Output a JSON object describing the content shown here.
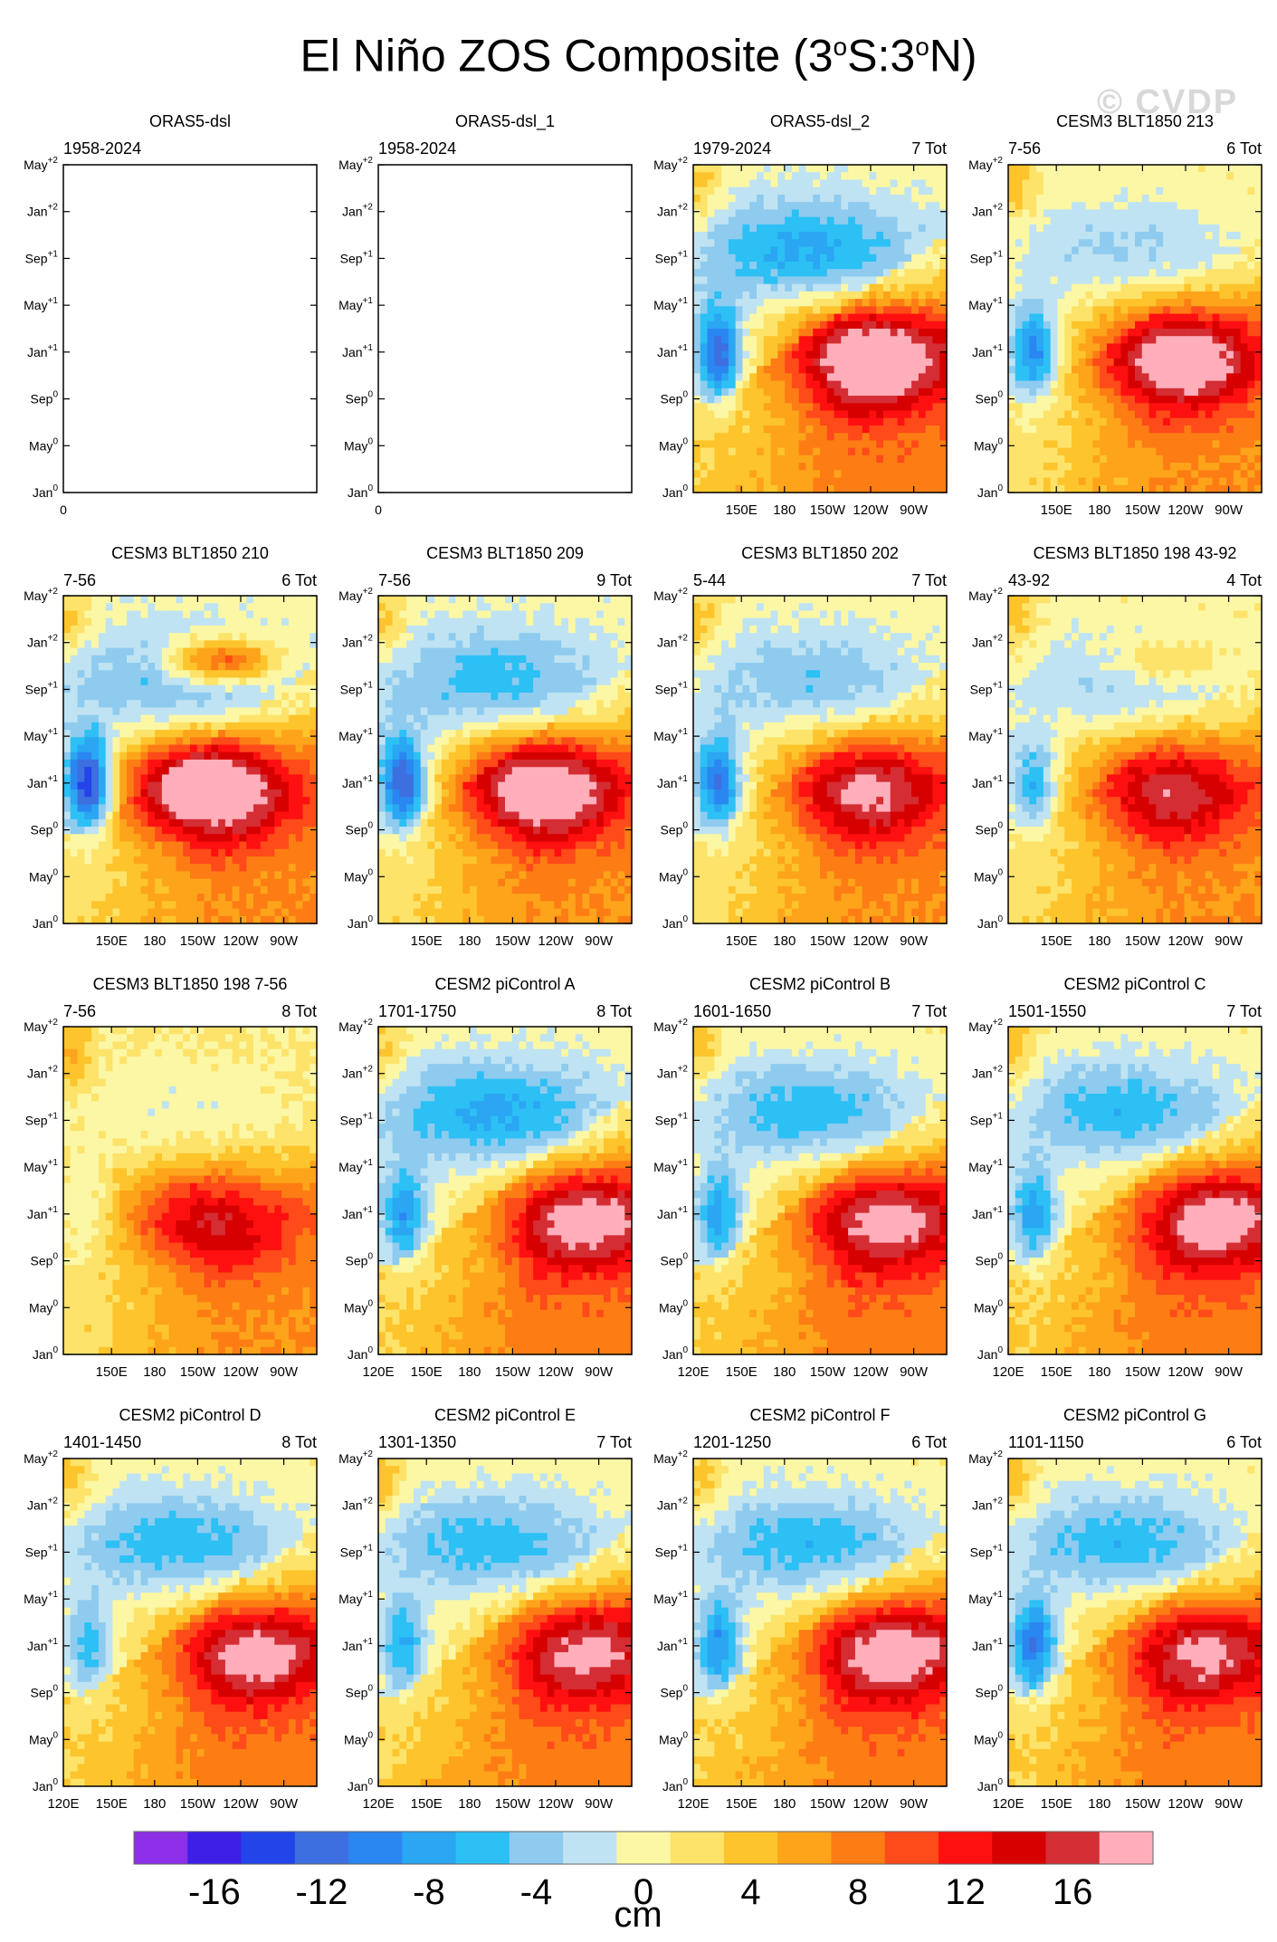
{
  "title": {
    "main": "El Niño ZOS Composite (3",
    "deg1": "o",
    "mid": "S:3",
    "deg2": "o",
    "end": "N)"
  },
  "watermark": "© CVDP",
  "chart_data": {
    "type": "heatmap",
    "colorbar": {
      "label": "cm",
      "levels": [
        -18,
        -16,
        -14,
        -12,
        -10,
        -8,
        -6,
        -4,
        -2,
        0,
        2,
        4,
        6,
        8,
        10,
        12,
        14,
        16,
        18
      ],
      "tick_labels": [
        "-16",
        "-12",
        "-8",
        "-4",
        "0",
        "4",
        "8",
        "12",
        "16"
      ],
      "tick_values": [
        -16,
        -12,
        -8,
        -4,
        0,
        4,
        8,
        12,
        16
      ],
      "colors": [
        "#8c2fe6",
        "#3d1fe6",
        "#2244e8",
        "#3d6fe0",
        "#2a86f0",
        "#2aa6f2",
        "#2cc0f5",
        "#8ecbef",
        "#bfe3f2",
        "#fbf7a5",
        "#fde36a",
        "#fdc42c",
        "#fda41a",
        "#fd7d14",
        "#ff4a1a",
        "#ff1010",
        "#d70000",
        "#d42d33",
        "#ffaeba"
      ]
    },
    "y_ticks": [
      {
        "m": "May",
        "s": "+2"
      },
      {
        "m": "Jan",
        "s": "+2"
      },
      {
        "m": "Sep",
        "s": "+1"
      },
      {
        "m": "May",
        "s": "+1"
      },
      {
        "m": "Jan",
        "s": "+1"
      },
      {
        "m": "Sep",
        "s": "0"
      },
      {
        "m": "May",
        "s": "0"
      },
      {
        "m": "Jan",
        "s": "0"
      }
    ],
    "x_ticks_full": [
      "120E",
      "150E",
      "180",
      "150W",
      "120W",
      "90W"
    ],
    "x_ticks_partial": [
      "150E",
      "180",
      "150W",
      "120W",
      "90W"
    ],
    "panels": [
      {
        "name": "ORAS5-dsl",
        "left": "1958-2024",
        "right": "",
        "empty": true,
        "zero_label": "0",
        "peak": 0,
        "west": 0,
        "neg": 0,
        "lobe2": 0,
        "bg": 0
      },
      {
        "name": "ORAS5-dsl_1",
        "left": "1958-2024",
        "right": "",
        "empty": true,
        "zero_label": "0",
        "peak": 0,
        "west": 0,
        "neg": 0,
        "lobe2": 0,
        "bg": 0
      },
      {
        "name": "ORAS5-dsl_2",
        "left": "1979-2024",
        "right": "7 Tot",
        "empty": false,
        "xt": "partial",
        "peak": 17,
        "west": -13,
        "neg": -8,
        "lobe2": 0,
        "bg": 2,
        "c": 0.68
      },
      {
        "name": "CESM3 BLT1850 213",
        "left": "7-56",
        "right": "6 Tot",
        "empty": false,
        "xt": "partial",
        "peak": 17,
        "west": -11,
        "neg": -4,
        "lobe2": 0,
        "bg": 1,
        "c": 0.65
      },
      {
        "name": "CESM3 BLT1850 210",
        "left": "7-56",
        "right": "6 Tot",
        "empty": false,
        "xt": "partial",
        "peak": 20,
        "west": -17,
        "neg": -6,
        "lobe2": 13,
        "bg": 1,
        "c": 0.55
      },
      {
        "name": "CESM3 BLT1850 209",
        "left": "7-56",
        "right": "9 Tot",
        "empty": false,
        "xt": "partial",
        "peak": 18,
        "west": -14,
        "neg": -6,
        "lobe2": 0,
        "bg": 1,
        "c": 0.62
      },
      {
        "name": "CESM3 BLT1850 202",
        "left": "5-44",
        "right": "7 Tot",
        "empty": false,
        "xt": "partial",
        "peak": 14,
        "west": -12,
        "neg": -5,
        "lobe2": 0,
        "bg": 1,
        "c": 0.65
      },
      {
        "name": "CESM3 BLT1850 198 43-92",
        "left": "43-92",
        "right": "4 Tot",
        "empty": false,
        "xt": "partial",
        "peak": 13,
        "west": -8,
        "neg": -4,
        "lobe2": 5,
        "bg": 1,
        "c": 0.6
      },
      {
        "name": "CESM3 BLT1850 198 7-56",
        "left": "7-56",
        "right": "8 Tot",
        "empty": false,
        "xt": "partial",
        "peak": 12,
        "west": -3,
        "neg": -2,
        "lobe2": 0,
        "bg": 1,
        "c": 0.55
      },
      {
        "name": "CESM2 piControl A",
        "left": "1701-1750",
        "right": "8 Tot",
        "empty": false,
        "xt": "full",
        "peak": 13,
        "west": -9,
        "neg": -8,
        "lobe2": 0,
        "bg": 2,
        "c": 0.78
      },
      {
        "name": "CESM2 piControl B",
        "left": "1601-1650",
        "right": "7 Tot",
        "empty": false,
        "xt": "full",
        "peak": 13,
        "west": -9,
        "neg": -7,
        "lobe2": 0,
        "bg": 2,
        "c": 0.72
      },
      {
        "name": "CESM2 piControl C",
        "left": "1501-1550",
        "right": "7 Tot",
        "empty": false,
        "xt": "full",
        "peak": 13,
        "west": -9,
        "neg": -7,
        "lobe2": 0,
        "bg": 2,
        "c": 0.78
      },
      {
        "name": "CESM2 piControl D",
        "left": "1401-1450",
        "right": "8 Tot",
        "empty": false,
        "xt": "full",
        "peak": 13,
        "west": -7,
        "neg": -7,
        "lobe2": 0,
        "bg": 2,
        "c": 0.72
      },
      {
        "name": "CESM2 piControl E",
        "left": "1301-1350",
        "right": "7 Tot",
        "empty": false,
        "xt": "full",
        "peak": 12,
        "west": -8,
        "neg": -7,
        "lobe2": 0,
        "bg": 2,
        "c": 0.78
      },
      {
        "name": "CESM2 piControl F",
        "left": "1201-1250",
        "right": "6 Tot",
        "empty": false,
        "xt": "full",
        "peak": 14,
        "west": -10,
        "neg": -7,
        "lobe2": 0,
        "bg": 2,
        "c": 0.75
      },
      {
        "name": "CESM2 piControl G",
        "left": "1101-1150",
        "right": "6 Tot",
        "empty": false,
        "xt": "full",
        "peak": 12,
        "west": -12,
        "neg": -7,
        "lobe2": 0,
        "bg": 2,
        "c": 0.72
      }
    ]
  }
}
